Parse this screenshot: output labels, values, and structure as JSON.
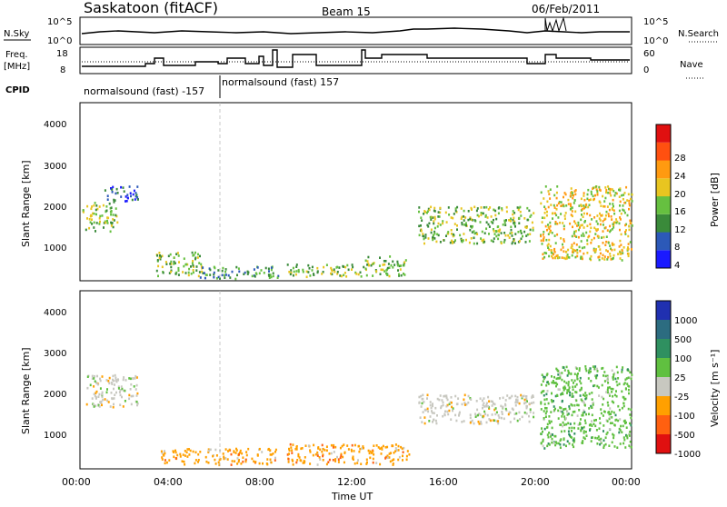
{
  "header": {
    "title": "Saskatoon (fitACF)",
    "beam": "Beam 15",
    "date": "06/Feb/2011"
  },
  "panels": {
    "noise": {
      "left_label": "N.Sky",
      "left_ticks": [
        "10^5",
        "10^0"
      ],
      "right_ticks": [
        "10^5",
        "10^0"
      ],
      "right_label": "N.Search"
    },
    "freq": {
      "left_label_1": "Freq.",
      "left_label_2": "[MHz]",
      "left_ticks": [
        "18",
        "8"
      ],
      "right_ticks": [
        "60",
        "0"
      ],
      "right_label": "Nave",
      "cpid_label": "CPID",
      "cpid_text_1": "normalsound (fast) -157",
      "cpid_text_2": "normalsound (fast) 157"
    },
    "power": {
      "y_label": "Slant Range [km]",
      "y_ticks": [
        "4000",
        "3000",
        "2000",
        "1000"
      ],
      "cb_label": "Power [dB]",
      "cb_ticks": [
        "28",
        "24",
        "20",
        "16",
        "12",
        "8",
        "4"
      ]
    },
    "velocity": {
      "y_label": "Slant Range [km]",
      "y_ticks": [
        "4000",
        "3000",
        "2000",
        "1000"
      ],
      "cb_label": "Velocity [m s⁻¹]",
      "cb_ticks": [
        "1000",
        "500",
        "100",
        "25",
        "-25",
        "-100",
        "-500",
        "-1000"
      ]
    },
    "x_ticks": [
      "00:00",
      "04:00",
      "08:00",
      "12:00",
      "16:00",
      "20:00",
      "00:00"
    ],
    "x_label": "Time UT"
  },
  "colors": {
    "power_scale": [
      "#1a1aff",
      "#2c59b8",
      "#3a8a3a",
      "#66c040",
      "#e8c520",
      "#ff9a10",
      "#ff5010",
      "#e01010"
    ],
    "velocity_scale": [
      "#2030b0",
      "#2c6c80",
      "#2f9060",
      "#60c040",
      "#c8c8c0",
      "#ffa000",
      "#ff6010",
      "#e01010"
    ]
  },
  "chart_data": {
    "type": "heatmap",
    "x_range_hours": [
      0,
      24
    ],
    "y_range_km": [
      180,
      4500
    ],
    "power_range_db": [
      0,
      30
    ],
    "velocity_range_ms": [
      -1000,
      1000
    ],
    "power_features": [
      {
        "t": [
          0.1,
          1.6
        ],
        "range_km": [
          1400,
          2100
        ],
        "level": 3
      },
      {
        "t": [
          1.0,
          2.5
        ],
        "range_km": [
          2100,
          2500
        ],
        "level": 1
      },
      {
        "t": [
          3.3,
          5.3
        ],
        "range_km": [
          300,
          900
        ],
        "level": 3
      },
      {
        "t": [
          5.0,
          8.6
        ],
        "range_km": [
          250,
          550
        ],
        "level": 2
      },
      {
        "t": [
          9.0,
          12.3
        ],
        "range_km": [
          300,
          600
        ],
        "level": 3
      },
      {
        "t": [
          12.3,
          14.2
        ],
        "range_km": [
          300,
          800
        ],
        "level": 3
      },
      {
        "t": [
          14.7,
          19.7
        ],
        "range_km": [
          1100,
          2000
        ],
        "level": 3
      },
      {
        "t": [
          20.0,
          24.0
        ],
        "range_km": [
          700,
          2500
        ],
        "level": 4
      }
    ],
    "velocity_features": [
      {
        "t": [
          0.2,
          2.5
        ],
        "range_km": [
          1700,
          2500
        ],
        "v": 0
      },
      {
        "t": [
          3.5,
          8.5
        ],
        "range_km": [
          300,
          700
        ],
        "v": -100
      },
      {
        "t": [
          9.0,
          14.3
        ],
        "range_km": [
          300,
          800
        ],
        "v": -100
      },
      {
        "t": [
          14.7,
          19.7
        ],
        "range_km": [
          1300,
          2000
        ],
        "v": 0
      },
      {
        "t": [
          20.0,
          24.0
        ],
        "range_km": [
          700,
          2700
        ],
        "v": 100
      }
    ]
  }
}
